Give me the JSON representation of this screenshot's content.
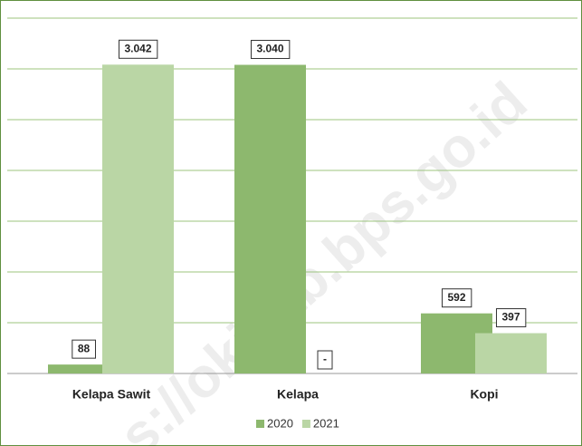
{
  "chart_data": {
    "type": "bar",
    "categories": [
      "Kelapa Sawit",
      "Kelapa",
      "Kopi"
    ],
    "series": [
      {
        "name": "2020",
        "color": "#8db86e",
        "values": [
          88,
          3040,
          592
        ],
        "value_labels": [
          "88",
          "3.040",
          "592"
        ]
      },
      {
        "name": "2021",
        "color": "#bad6a5",
        "values": [
          3042,
          null,
          397
        ],
        "value_labels": [
          "3.042",
          "-",
          "397"
        ]
      }
    ],
    "ylim": [
      0,
      3500
    ],
    "yticks": [
      0,
      500,
      1000,
      1500,
      2000,
      2500,
      3000,
      3500
    ],
    "grid": true,
    "legend": "bottom",
    "watermark": "s://okikab.bps.go.id"
  }
}
